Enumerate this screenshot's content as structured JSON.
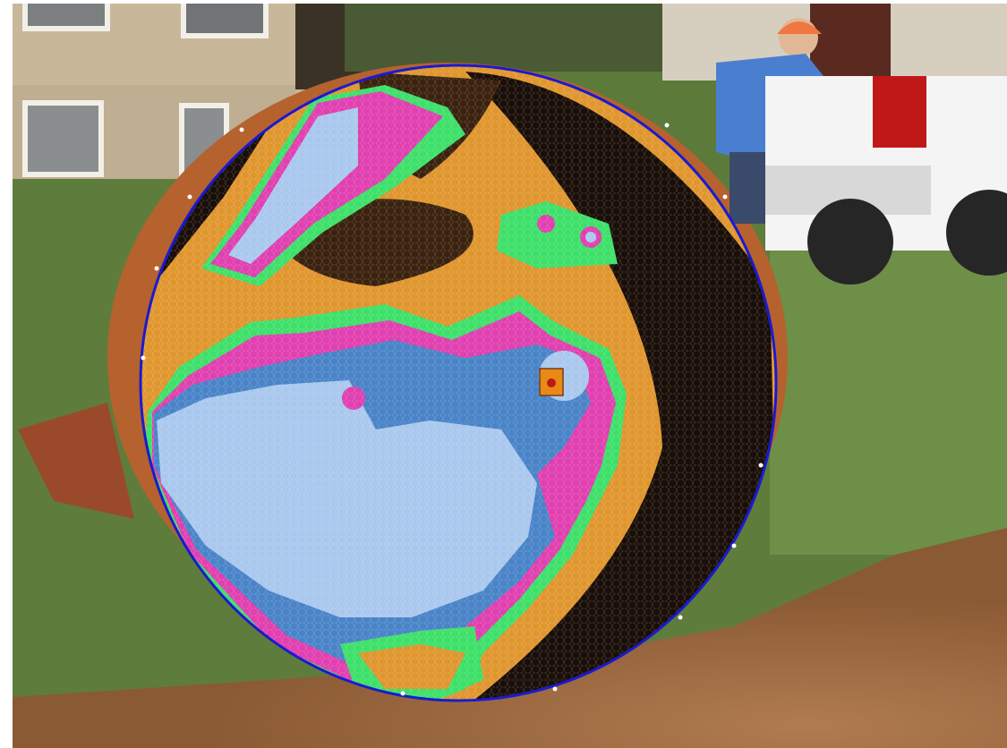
{
  "image": {
    "description_icons": [
      "tree-cross-section",
      "tomography-overlay",
      "worker",
      "pickup-truck",
      "house",
      "grass",
      "sawdust"
    ],
    "colors": {
      "sky_overlay_ring": "#1a1ad0",
      "sound_wood": "#1a0e08",
      "amber": "#e0962e",
      "green": "#3ee06a",
      "magenta": "#e040b0",
      "light_blue": "#aac8ee",
      "mid_blue": "#4a84c8",
      "grass": "#5c7a3a",
      "sawdust": "#a8744a",
      "bark": "#c5703a",
      "truck": "#f4f4f4",
      "shirt": "#4a7fd0",
      "helmet": "#f07840"
    },
    "sensor_marker": "sensor-marker-icon"
  }
}
